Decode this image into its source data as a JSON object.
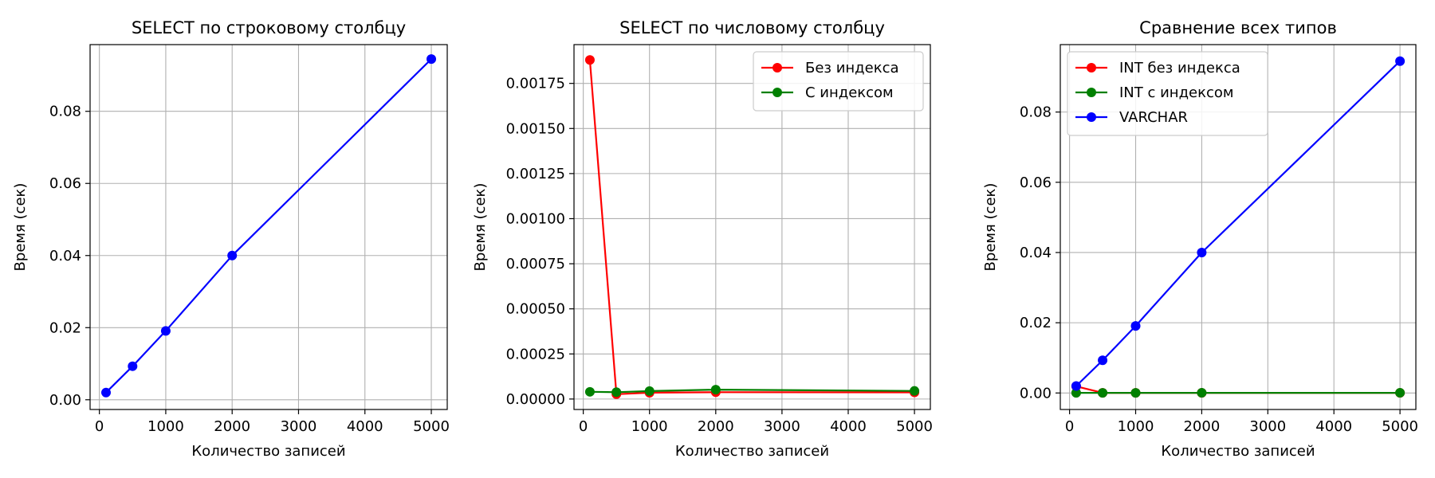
{
  "chart_data": [
    {
      "type": "line",
      "title": "SELECT по строковому столбцу",
      "xlabel": "Количество записей",
      "ylabel": "Время (сек)",
      "xlim": [
        -140,
        5240
      ],
      "ylim": [
        -0.0027,
        0.0985
      ],
      "xticks": [
        0,
        1000,
        2000,
        3000,
        4000,
        5000
      ],
      "yticks": [
        0.0,
        0.02,
        0.04,
        0.06,
        0.08
      ],
      "ytick_decimals": 2,
      "grid": true,
      "legend": "none",
      "x": [
        100,
        500,
        1000,
        2000,
        5000
      ],
      "series": [
        {
          "color": "#0000ff",
          "values": [
            0.002,
            0.0093,
            0.0191,
            0.04,
            0.0945
          ]
        }
      ]
    },
    {
      "type": "line",
      "title": "SELECT по числовому столбцу",
      "xlabel": "Количество записей",
      "ylabel": "Время (сек)",
      "xlim": [
        -140,
        5240
      ],
      "ylim": [
        -5.8e-05,
        0.001965
      ],
      "xticks": [
        0,
        1000,
        2000,
        3000,
        4000,
        5000
      ],
      "yticks": [
        0.0,
        0.00025,
        0.0005,
        0.00075,
        0.001,
        0.00125,
        0.0015,
        0.00175
      ],
      "ytick_decimals": 5,
      "grid": true,
      "legend": "top-right",
      "x": [
        100,
        500,
        1000,
        2000,
        5000
      ],
      "series": [
        {
          "name": "Без индекса",
          "color": "#ff0000",
          "values": [
            0.00188,
            2.7e-05,
            3.5e-05,
            3.8e-05,
            3.7e-05
          ]
        },
        {
          "name": "С индексом",
          "color": "#008000",
          "values": [
            4e-05,
            3.8e-05,
            4.4e-05,
            5.2e-05,
            4.5e-05
          ]
        }
      ]
    },
    {
      "type": "line",
      "title": "Сравнение всех типов",
      "xlabel": "Количество записей",
      "ylabel": "Время (сек)",
      "xlim": [
        -140,
        5240
      ],
      "ylim": [
        -0.0047,
        0.0992
      ],
      "xticks": [
        0,
        1000,
        2000,
        3000,
        4000,
        5000
      ],
      "yticks": [
        0.0,
        0.02,
        0.04,
        0.06,
        0.08
      ],
      "ytick_decimals": 2,
      "grid": true,
      "legend": "top-left",
      "x": [
        100,
        500,
        1000,
        2000,
        5000
      ],
      "series": [
        {
          "name": "INT без индекса",
          "color": "#ff0000",
          "values": [
            0.0019,
            3e-05,
            4e-05,
            4e-05,
            4e-05
          ]
        },
        {
          "name": "INT с индексом",
          "color": "#008000",
          "values": [
            4e-05,
            4e-05,
            4e-05,
            5e-05,
            5e-05
          ]
        },
        {
          "name": "VARCHAR",
          "color": "#0000ff",
          "values": [
            0.002,
            0.0093,
            0.0191,
            0.04,
            0.0945
          ]
        }
      ]
    }
  ]
}
